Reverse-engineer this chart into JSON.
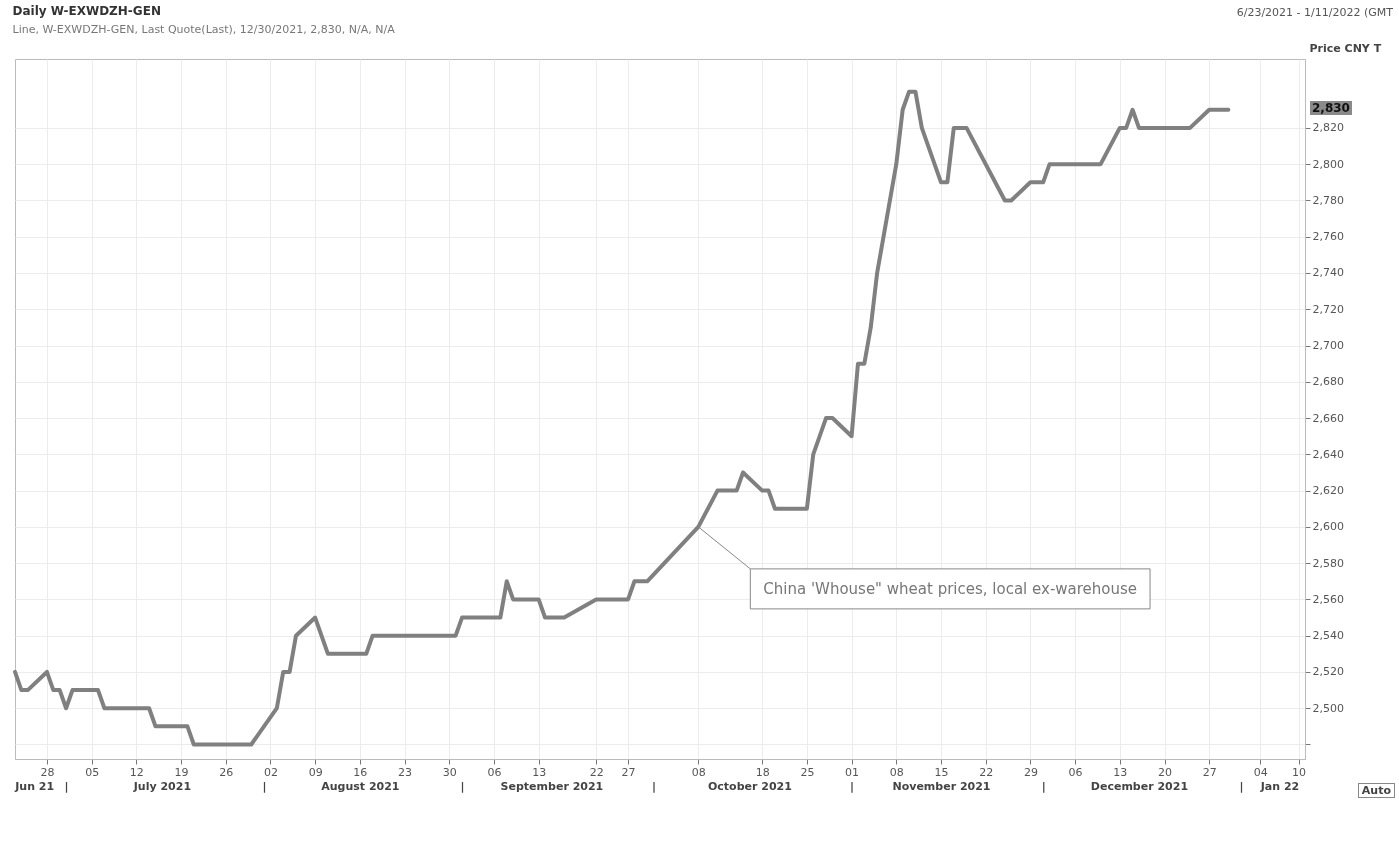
{
  "chart_data": {
    "type": "line",
    "title": "Daily W-EXWDZH-GEN",
    "subtitle": "Line, W-EXWDZH-GEN, Last Quote(Last), 12/30/2021, 2,830, N/A, N/A",
    "ylabel": "Price CNY T",
    "x": [
      "2021-06-23",
      "2021-06-24",
      "2021-06-25",
      "2021-06-28",
      "2021-06-29",
      "2021-06-30",
      "2021-07-01",
      "2021-07-02",
      "2021-07-06",
      "2021-07-07",
      "2021-07-14",
      "2021-07-15",
      "2021-07-20",
      "2021-07-21",
      "2021-07-30",
      "2021-08-03",
      "2021-08-04",
      "2021-08-05",
      "2021-08-06",
      "2021-08-09",
      "2021-08-11",
      "2021-08-17",
      "2021-08-18",
      "2021-08-31",
      "2021-09-01",
      "2021-09-07",
      "2021-09-08",
      "2021-09-09",
      "2021-09-13",
      "2021-09-14",
      "2021-09-17",
      "2021-09-22",
      "2021-09-27",
      "2021-09-28",
      "2021-09-30",
      "2021-10-08",
      "2021-10-11",
      "2021-10-14",
      "2021-10-15",
      "2021-10-18",
      "2021-10-19",
      "2021-10-20",
      "2021-10-25",
      "2021-10-26",
      "2021-10-28",
      "2021-10-29",
      "2021-11-01",
      "2021-11-02",
      "2021-11-03",
      "2021-11-04",
      "2021-11-05",
      "2021-11-08",
      "2021-11-09",
      "2021-11-10",
      "2021-11-11",
      "2021-11-12",
      "2021-11-15",
      "2021-11-16",
      "2021-11-17",
      "2021-11-19",
      "2021-11-25",
      "2021-11-26",
      "2021-11-29",
      "2021-12-01",
      "2021-12-02",
      "2021-12-10",
      "2021-12-13",
      "2021-12-14",
      "2021-12-15",
      "2021-12-16",
      "2021-12-24",
      "2021-12-27",
      "2021-12-30"
    ],
    "series": [
      {
        "color": "#808080",
        "values": [
          2520,
          2510,
          2510,
          2520,
          2510,
          2510,
          2500,
          2510,
          2510,
          2500,
          2500,
          2490,
          2490,
          2480,
          2480,
          2500,
          2520,
          2520,
          2540,
          2550,
          2530,
          2530,
          2540,
          2540,
          2550,
          2550,
          2570,
          2560,
          2560,
          2550,
          2550,
          2560,
          2560,
          2570,
          2570,
          2600,
          2620,
          2620,
          2630,
          2620,
          2620,
          2610,
          2610,
          2640,
          2660,
          2660,
          2650,
          2690,
          2690,
          2710,
          2740,
          2800,
          2830,
          2840,
          2840,
          2820,
          2790,
          2790,
          2820,
          2820,
          2780,
          2780,
          2790,
          2790,
          2800,
          2800,
          2820,
          2820,
          2830,
          2820,
          2820,
          2830,
          2830
        ]
      }
    ],
    "xlim": [
      "2021-06-23",
      "2022-01-11"
    ],
    "xticks": [
      {
        "value": "2021-06-28",
        "label": "28"
      },
      {
        "value": "2021-07-05",
        "label": "05"
      },
      {
        "value": "2021-07-12",
        "label": "12"
      },
      {
        "value": "2021-07-19",
        "label": "19"
      },
      {
        "value": "2021-07-26",
        "label": "26"
      },
      {
        "value": "2021-08-02",
        "label": "02"
      },
      {
        "value": "2021-08-09",
        "label": "09"
      },
      {
        "value": "2021-08-16",
        "label": "16"
      },
      {
        "value": "2021-08-23",
        "label": "23"
      },
      {
        "value": "2021-08-30",
        "label": "30"
      },
      {
        "value": "2021-09-06",
        "label": "06"
      },
      {
        "value": "2021-09-13",
        "label": "13"
      },
      {
        "value": "2021-09-22",
        "label": "22"
      },
      {
        "value": "2021-09-27",
        "label": "27"
      },
      {
        "value": "2021-10-08",
        "label": "08"
      },
      {
        "value": "2021-10-18",
        "label": "18"
      },
      {
        "value": "2021-10-25",
        "label": "25"
      },
      {
        "value": "2021-11-01",
        "label": "01"
      },
      {
        "value": "2021-11-08",
        "label": "08"
      },
      {
        "value": "2021-11-15",
        "label": "15"
      },
      {
        "value": "2021-11-22",
        "label": "22"
      },
      {
        "value": "2021-11-29",
        "label": "29"
      },
      {
        "value": "2021-12-06",
        "label": "06"
      },
      {
        "value": "2021-12-13",
        "label": "13"
      },
      {
        "value": "2021-12-20",
        "label": "20"
      },
      {
        "value": "2021-12-27",
        "label": "27"
      },
      {
        "value": "2022-01-04",
        "label": "04"
      },
      {
        "value": "2022-01-10",
        "label": "10"
      }
    ],
    "x2lim": [
      "2021-06-23",
      "2022-01-11"
    ],
    "x2ticks": [
      {
        "value": "2021-06-26",
        "label": "Jun 21"
      },
      {
        "value": "2021-07-01",
        "label": "|"
      },
      {
        "value": "2021-07-16",
        "label": "July 2021"
      },
      {
        "value": "2021-08-01",
        "label": "|"
      },
      {
        "value": "2021-08-16",
        "label": "August 2021"
      },
      {
        "value": "2021-09-01",
        "label": "|"
      },
      {
        "value": "2021-09-15",
        "label": "September 2021"
      },
      {
        "value": "2021-10-01",
        "label": "|"
      },
      {
        "value": "2021-10-16",
        "label": "October 2021"
      },
      {
        "value": "2021-11-01",
        "label": "|"
      },
      {
        "value": "2021-11-15",
        "label": "November 2021"
      },
      {
        "value": "2021-12-01",
        "label": "|"
      },
      {
        "value": "2021-12-16",
        "label": "December 2021"
      },
      {
        "value": "2022-01-01",
        "label": "|"
      },
      {
        "value": "2022-01-07",
        "label": "Jan 22"
      }
    ],
    "ylim": [
      2472,
      2858
    ],
    "yticks": [
      {
        "value": 2480,
        "label": null
      },
      {
        "value": 2500,
        "label": "2,500"
      },
      {
        "value": 2520,
        "label": "2,520"
      },
      {
        "value": 2540,
        "label": "2,540"
      },
      {
        "value": 2560,
        "label": "2,560"
      },
      {
        "value": 2580,
        "label": "2,580"
      },
      {
        "value": 2600,
        "label": "2,600"
      },
      {
        "value": 2620,
        "label": "2,620"
      },
      {
        "value": 2640,
        "label": "2,640"
      },
      {
        "value": 2660,
        "label": "2,660"
      },
      {
        "value": 2680,
        "label": "2,680"
      },
      {
        "value": 2700,
        "label": "2,700"
      },
      {
        "value": 2720,
        "label": "2,720"
      },
      {
        "value": 2740,
        "label": "2,740"
      },
      {
        "value": 2760,
        "label": "2,760"
      },
      {
        "value": 2780,
        "label": "2,780"
      },
      {
        "value": 2800,
        "label": "2,800"
      },
      {
        "value": 2820,
        "label": "2,820"
      }
    ],
    "grid": true,
    "annotations": [
      "6/23/2021 - 1/11/2022 (GMT",
      {
        "text": "China 'Whouse\" wheat prices, local ex-warehouse",
        "x": "2021-10-08",
        "y": 2600
      },
      "2,830",
      "Auto"
    ]
  }
}
